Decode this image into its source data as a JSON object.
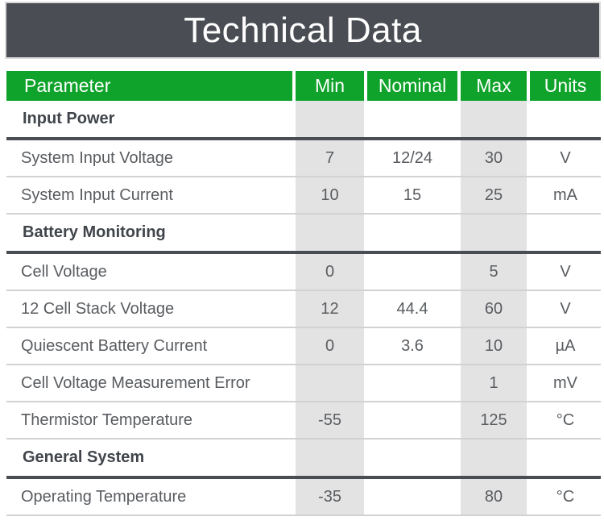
{
  "title": "Technical Data",
  "colors": {
    "accent_green": "#10a32b",
    "title_bar": "#4a4d53",
    "column_stripe": "#e3e3e3",
    "dark_divider": "#4a4d53",
    "light_divider": "#d2d2d2",
    "header_text": "#ffffff",
    "body_text": "#595c60",
    "section_text": "#40454b"
  },
  "table": {
    "headers": [
      "Parameter",
      "Min",
      "Nominal",
      "Max",
      "Units"
    ],
    "sections": [
      {
        "name": "Input Power",
        "rows": [
          {
            "parameter": "System Input Voltage",
            "min": "7",
            "nominal": "12/24",
            "max": "30",
            "units": "V"
          },
          {
            "parameter": "System Input Current",
            "min": "10",
            "nominal": "15",
            "max": "25",
            "units": "mA"
          }
        ]
      },
      {
        "name": "Battery Monitoring",
        "rows": [
          {
            "parameter": "Cell Voltage",
            "min": "0",
            "nominal": "",
            "max": "5",
            "units": "V"
          },
          {
            "parameter": "12 Cell Stack Voltage",
            "min": "12",
            "nominal": "44.4",
            "max": "60",
            "units": "V"
          },
          {
            "parameter": "Quiescent Battery Current",
            "min": "0",
            "nominal": "3.6",
            "max": "10",
            "units": "µA"
          },
          {
            "parameter": "Cell Voltage Measurement Error",
            "min": "",
            "nominal": "",
            "max": "1",
            "units": "mV"
          },
          {
            "parameter": "Thermistor Temperature",
            "min": "-55",
            "nominal": "",
            "max": "125",
            "units": "°C"
          }
        ]
      },
      {
        "name": "General System",
        "rows": [
          {
            "parameter": "Operating Temperature",
            "min": "-35",
            "nominal": "",
            "max": "80",
            "units": "°C"
          }
        ]
      }
    ]
  }
}
